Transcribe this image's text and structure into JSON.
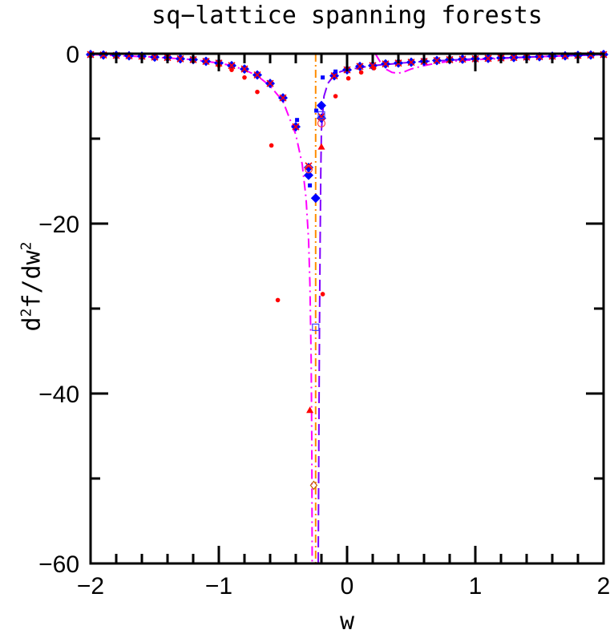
{
  "chart_data": {
    "type": "scatter",
    "title": "sq−lattice spanning forests",
    "xlabel": "w",
    "ylabel": "d²f/dw²",
    "xlim": [
      -2,
      2
    ],
    "ylim": [
      -60,
      0
    ],
    "xticks": [
      "−2",
      "−1",
      "0",
      "1",
      "2"
    ],
    "xtick_values": [
      -2,
      -1,
      0,
      1,
      2
    ],
    "yticks": [
      "0",
      "−20",
      "−40",
      "−60"
    ],
    "ytick_values": [
      0,
      -20,
      -40,
      -60
    ],
    "grid": false,
    "series": [
      {
        "marker": "diamond-filled",
        "color": "#0000ff",
        "x": [
          -2,
          -1.9,
          -1.8,
          -1.7,
          -1.6,
          -1.5,
          -1.4,
          -1.3,
          -1.2,
          -1.1,
          -1.0,
          -0.9,
          -0.8,
          -0.7,
          -0.6,
          -0.5,
          -0.4,
          -0.3,
          -0.2,
          -0.1,
          0,
          0.1,
          0.2,
          0.3,
          0.4,
          0.5,
          0.6,
          0.7,
          0.8,
          0.9,
          1.0,
          1.1,
          1.2,
          1.3,
          1.4,
          1.5,
          1.6,
          1.7,
          1.8,
          1.9,
          2.0
        ],
        "y": [
          -0.1,
          -0.15,
          -0.2,
          -0.25,
          -0.3,
          -0.4,
          -0.45,
          -0.6,
          -0.7,
          -0.9,
          -1.1,
          -1.4,
          -1.8,
          -2.5,
          -3.5,
          -5.2,
          -8.6,
          -13.4,
          -7.6,
          -2.6,
          -1.9,
          -1.5,
          -1.4,
          -1.2,
          -1.1,
          -1.0,
          -0.9,
          -0.8,
          -0.7,
          -0.65,
          -0.6,
          -0.55,
          -0.5,
          -0.45,
          -0.4,
          -0.35,
          -0.3,
          -0.25,
          -0.2,
          -0.15,
          -0.1
        ]
      },
      {
        "marker": "cross",
        "color": "#ff0000",
        "x": [
          -2,
          -1.9,
          -1.8,
          -1.7,
          -1.6,
          -1.5,
          -1.4,
          -1.3,
          -1.2,
          -1.1,
          -1.0,
          -0.9,
          -0.8,
          -0.7,
          -0.6,
          -0.5,
          -0.4,
          -0.3,
          -0.2,
          -0.1,
          0,
          0.1,
          0.2,
          0.3,
          0.4,
          0.5,
          0.6,
          0.7,
          0.8,
          0.9,
          1.0,
          1.1,
          1.2,
          1.3,
          1.4,
          1.5,
          1.6,
          1.7,
          1.8,
          1.9,
          2.0
        ],
        "y": [
          -0.1,
          -0.15,
          -0.2,
          -0.25,
          -0.3,
          -0.4,
          -0.45,
          -0.6,
          -0.7,
          -0.9,
          -1.1,
          -1.4,
          -1.8,
          -2.5,
          -3.5,
          -5.2,
          -8.6,
          -13.2,
          -7.4,
          -2.6,
          -1.9,
          -1.5,
          -1.4,
          -1.2,
          -1.1,
          -1.0,
          -0.9,
          -0.8,
          -0.7,
          -0.65,
          -0.6,
          -0.55,
          -0.5,
          -0.45,
          -0.4,
          -0.35,
          -0.3,
          -0.25,
          -0.2,
          -0.15,
          -0.1
        ]
      },
      {
        "marker": "dot",
        "color": "#ff0000",
        "x": [
          -1.0,
          -0.9,
          -0.8,
          -0.7,
          -0.59,
          -0.54,
          -0.19,
          -0.09,
          0.01,
          0.11,
          0.21
        ],
        "y": [
          -1.4,
          -1.9,
          -2.8,
          -4.5,
          -10.8,
          -29.0,
          -28.3,
          -5.0,
          -2.9,
          -2.2,
          -1.7
        ]
      },
      {
        "marker": "square-small",
        "color": "#0000ff",
        "x": [
          -0.39,
          -0.29,
          -0.24,
          -0.19,
          -0.09
        ],
        "y": [
          -7.8,
          -15.5,
          -6.7,
          -2.8,
          -2.1
        ]
      },
      {
        "marker": "diamond-filled",
        "color": "#0000ff",
        "x": [
          -0.2,
          -0.245,
          -0.3
        ],
        "y": [
          -6.1,
          -17.0,
          -14.3
        ]
      },
      {
        "marker": "triangle",
        "color": "#ff0000",
        "x": [
          -0.2,
          -0.29
        ],
        "y": [
          -11.0,
          -42.0
        ]
      },
      {
        "marker": "circle-open",
        "color": "#ff4040",
        "x": [
          -0.2,
          -0.3
        ],
        "y": [
          -8.2,
          -13.6
        ]
      },
      {
        "marker": "square-open",
        "color": "#4040ff",
        "x": [
          -0.245,
          -0.2
        ],
        "y": [
          -32.2,
          -7.2
        ]
      },
      {
        "marker": "diamond-open",
        "color": "#c06000",
        "x": [
          -0.26
        ],
        "y": [
          -50.8
        ]
      }
    ],
    "curves": [
      {
        "style": "dash-dot",
        "color": "#ff00ff",
        "x": [
          -2,
          -1.5,
          -1.2,
          -1.0,
          -0.9,
          -0.8,
          -0.7,
          -0.6,
          -0.5,
          -0.4,
          -0.35,
          -0.32,
          -0.3,
          -0.29,
          -0.28,
          -0.275,
          -0.272
        ],
        "y": [
          -0.1,
          -0.4,
          -0.7,
          -1.1,
          -1.4,
          -1.9,
          -2.6,
          -3.8,
          -5.6,
          -9.5,
          -13,
          -17,
          -22,
          -27,
          -36,
          -46,
          -60
        ]
      },
      {
        "style": "dash-dot",
        "color": "#ff00ff",
        "x": [
          0.22,
          0.26,
          0.3,
          0.35,
          0.4,
          0.45,
          0.5,
          0.6,
          0.7,
          0.8,
          1.0,
          1.5,
          2.0
        ],
        "y": [
          0,
          -1.0,
          -1.8,
          -2.2,
          -2.3,
          -2.1,
          -1.8,
          -1.4,
          -1.1,
          -0.9,
          -0.7,
          -0.35,
          -0.1
        ]
      },
      {
        "style": "dashed",
        "color": "#8000ff",
        "x": [
          -0.225,
          -0.22,
          -0.215,
          -0.21,
          -0.205,
          -0.2,
          -0.18,
          -0.15,
          -0.1,
          -0.05,
          0,
          0.2,
          0.5,
          1.0,
          1.5,
          2.0
        ],
        "y": [
          -60,
          -45,
          -32,
          -22,
          -14,
          -9,
          -5,
          -3.5,
          -2.5,
          -2.1,
          -1.9,
          -1.4,
          -1.0,
          -0.6,
          -0.35,
          -0.1
        ]
      },
      {
        "style": "dotted-vertical",
        "color": "#ff8c00",
        "x": [
          -0.245,
          -0.245
        ],
        "y": [
          0,
          -60
        ]
      }
    ]
  }
}
